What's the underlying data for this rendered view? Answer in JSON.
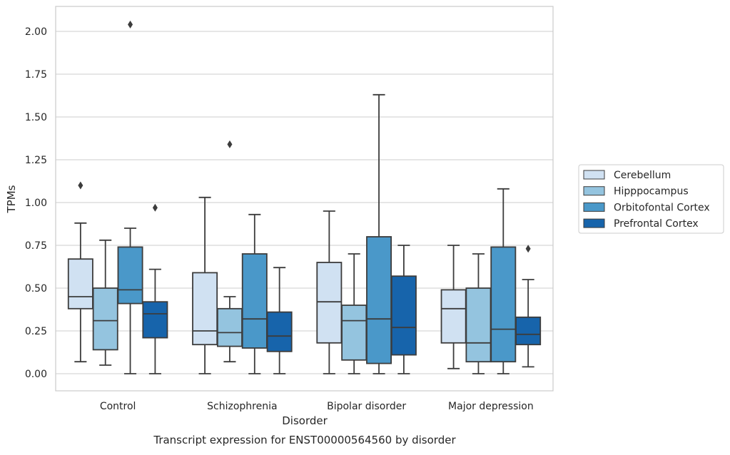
{
  "chart_data": {
    "type": "box",
    "caption": "Transcript expression for ENST00000564560 by disorder",
    "xlabel": "Disorder",
    "ylabel": "TPMs",
    "ylim": [
      -0.1,
      2.15
    ],
    "yticks": [
      0.0,
      0.25,
      0.5,
      0.75,
      1.0,
      1.25,
      1.5,
      1.75,
      2.0
    ],
    "ytick_labels": [
      "0.00",
      "0.25",
      "0.50",
      "0.75",
      "1.00",
      "1.25",
      "1.50",
      "1.75",
      "2.00"
    ],
    "categories": [
      "Control",
      "Schizophrenia",
      "Bipolar disorder",
      "Major depression"
    ],
    "grid": "horizontal",
    "legend_position": "right",
    "series": [
      {
        "name": "Cerebellum",
        "color": "#d0e1f2",
        "boxes": [
          {
            "whisker_low": 0.07,
            "q1": 0.38,
            "median": 0.45,
            "q3": 0.67,
            "whisker_high": 0.88,
            "outliers": [
              1.1
            ]
          },
          {
            "whisker_low": 0.0,
            "q1": 0.17,
            "median": 0.25,
            "q3": 0.59,
            "whisker_high": 1.03,
            "outliers": []
          },
          {
            "whisker_low": 0.0,
            "q1": 0.18,
            "median": 0.42,
            "q3": 0.65,
            "whisker_high": 0.95,
            "outliers": []
          },
          {
            "whisker_low": 0.03,
            "q1": 0.18,
            "median": 0.38,
            "q3": 0.49,
            "whisker_high": 0.75,
            "outliers": []
          }
        ]
      },
      {
        "name": "Hipppocampus",
        "color": "#94c4df",
        "boxes": [
          {
            "whisker_low": 0.05,
            "q1": 0.14,
            "median": 0.31,
            "q3": 0.5,
            "whisker_high": 0.78,
            "outliers": []
          },
          {
            "whisker_low": 0.07,
            "q1": 0.16,
            "median": 0.24,
            "q3": 0.38,
            "whisker_high": 0.45,
            "outliers": [
              1.34
            ]
          },
          {
            "whisker_low": 0.0,
            "q1": 0.08,
            "median": 0.31,
            "q3": 0.4,
            "whisker_high": 0.7,
            "outliers": []
          },
          {
            "whisker_low": 0.0,
            "q1": 0.07,
            "median": 0.18,
            "q3": 0.5,
            "whisker_high": 0.7,
            "outliers": []
          }
        ]
      },
      {
        "name": "Orbitofontal Cortex",
        "color": "#4a98c9",
        "boxes": [
          {
            "whisker_low": 0.0,
            "q1": 0.41,
            "median": 0.49,
            "q3": 0.74,
            "whisker_high": 0.85,
            "outliers": [
              2.04
            ]
          },
          {
            "whisker_low": 0.0,
            "q1": 0.15,
            "median": 0.32,
            "q3": 0.7,
            "whisker_high": 0.93,
            "outliers": []
          },
          {
            "whisker_low": 0.0,
            "q1": 0.06,
            "median": 0.32,
            "q3": 0.8,
            "whisker_high": 1.63,
            "outliers": []
          },
          {
            "whisker_low": 0.0,
            "q1": 0.07,
            "median": 0.26,
            "q3": 0.74,
            "whisker_high": 1.08,
            "outliers": []
          }
        ]
      },
      {
        "name": "Prefrontal Cortex",
        "color": "#1764ab",
        "boxes": [
          {
            "whisker_low": 0.0,
            "q1": 0.21,
            "median": 0.35,
            "q3": 0.42,
            "whisker_high": 0.61,
            "outliers": [
              0.97
            ]
          },
          {
            "whisker_low": 0.0,
            "q1": 0.13,
            "median": 0.22,
            "q3": 0.36,
            "whisker_high": 0.62,
            "outliers": []
          },
          {
            "whisker_low": 0.0,
            "q1": 0.11,
            "median": 0.27,
            "q3": 0.57,
            "whisker_high": 0.75,
            "outliers": []
          },
          {
            "whisker_low": 0.04,
            "q1": 0.17,
            "median": 0.23,
            "q3": 0.33,
            "whisker_high": 0.55,
            "outliers": [
              0.73
            ]
          }
        ]
      }
    ]
  }
}
